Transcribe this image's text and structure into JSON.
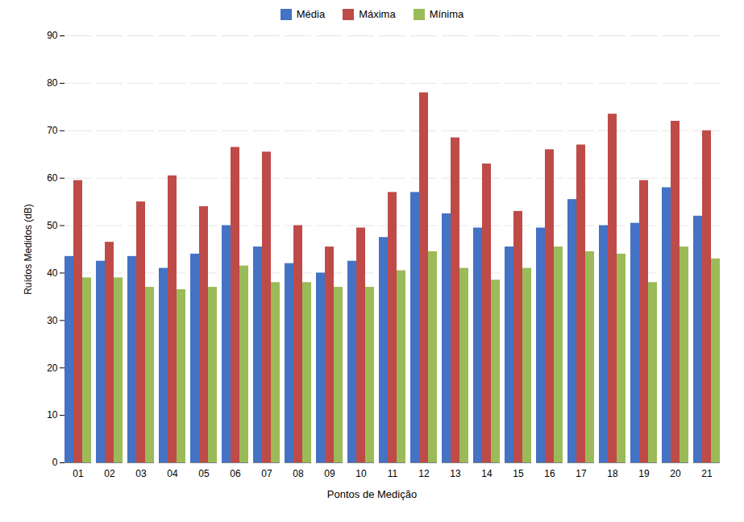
{
  "chart_data": {
    "type": "bar",
    "categories": [
      "01",
      "02",
      "03",
      "04",
      "05",
      "06",
      "07",
      "08",
      "09",
      "10",
      "11",
      "12",
      "13",
      "14",
      "15",
      "16",
      "17",
      "18",
      "19",
      "20",
      "21"
    ],
    "series": [
      {
        "name": "Média",
        "color": "#4472C4",
        "values": [
          43.5,
          42.5,
          43.5,
          41.0,
          44.0,
          50.0,
          45.5,
          42.0,
          40.0,
          42.5,
          47.5,
          57.0,
          52.5,
          49.5,
          45.5,
          49.5,
          55.5,
          50.0,
          50.5,
          58.0,
          52.0
        ]
      },
      {
        "name": "Máxima",
        "color": "#BE4B48",
        "values": [
          59.5,
          46.5,
          55.0,
          60.5,
          54.0,
          66.5,
          65.5,
          50.0,
          45.5,
          49.5,
          57.0,
          78.0,
          68.5,
          63.0,
          53.0,
          66.0,
          67.0,
          73.5,
          59.5,
          72.0,
          70.0
        ]
      },
      {
        "name": "Mínima",
        "color": "#9BBB59",
        "values": [
          39.0,
          39.0,
          37.0,
          36.5,
          37.0,
          41.5,
          38.0,
          38.0,
          37.0,
          37.0,
          40.5,
          44.5,
          41.0,
          38.5,
          41.0,
          45.5,
          44.5,
          44.0,
          38.0,
          45.5,
          43.0
        ]
      }
    ],
    "xlabel": "Pontos de Medição",
    "ylabel": "Ruídos Medidos (dB)",
    "ylim": [
      0,
      90
    ],
    "yticks": [
      0,
      10,
      20,
      30,
      40,
      50,
      60,
      70,
      80,
      90
    ],
    "grid": true,
    "legend": "top"
  }
}
